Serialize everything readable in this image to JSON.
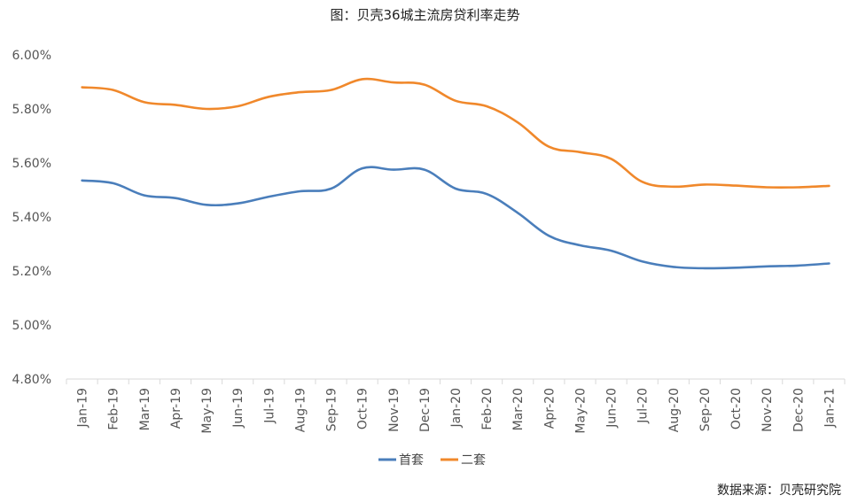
{
  "title": "图：贝壳36城主流房贷利率走势",
  "source": "数据来源：贝壳研究院",
  "chart_data": {
    "type": "line",
    "categories": [
      "Jan-19",
      "Feb-19",
      "Mar-19",
      "Apr-19",
      "May-19",
      "Jun-19",
      "Jul-19",
      "Aug-19",
      "Sep-19",
      "Oct-19",
      "Nov-19",
      "Dec-19",
      "Jan-20",
      "Feb-20",
      "Mar-20",
      "Apr-20",
      "May-20",
      "Jun-20",
      "Jul-20",
      "Aug-20",
      "Sep-20",
      "Oct-20",
      "Nov-20",
      "Dec-20",
      "Jan-21"
    ],
    "series": [
      {
        "name": "首套",
        "color": "#4a7ebb",
        "values": [
          5.535,
          5.525,
          5.48,
          5.47,
          5.445,
          5.45,
          5.475,
          5.495,
          5.505,
          5.58,
          5.575,
          5.575,
          5.505,
          5.485,
          5.415,
          5.33,
          5.295,
          5.275,
          5.235,
          5.215,
          5.21,
          5.212,
          5.217,
          5.22,
          5.228
        ]
      },
      {
        "name": "二套",
        "color": "#f0882b",
        "values": [
          5.88,
          5.87,
          5.825,
          5.815,
          5.8,
          5.81,
          5.845,
          5.862,
          5.87,
          5.91,
          5.898,
          5.89,
          5.83,
          5.81,
          5.75,
          5.66,
          5.64,
          5.615,
          5.53,
          5.512,
          5.52,
          5.516,
          5.51,
          5.51,
          5.515
        ]
      }
    ],
    "ylim": [
      4.8,
      6.0
    ],
    "yticks": [
      "4.80%",
      "5.00%",
      "5.20%",
      "5.40%",
      "5.60%",
      "5.80%",
      "6.00%"
    ],
    "grid": false,
    "legend": "bottom"
  }
}
